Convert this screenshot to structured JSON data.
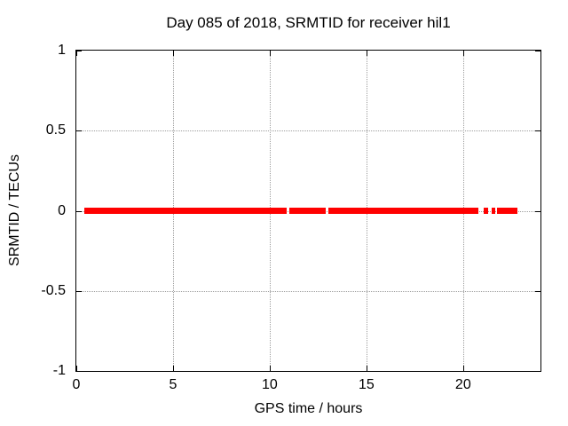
{
  "chart_data": {
    "type": "scatter",
    "title": "Day 085 of 2018, SRMTID for receiver hil1",
    "xlabel": "GPS time / hours",
    "ylabel": "SRMTID / TECUs",
    "xlim": [
      0,
      24
    ],
    "ylim": [
      -1,
      1
    ],
    "x_ticks": [
      0,
      5,
      10,
      15,
      20
    ],
    "x_tick_labels": [
      "0",
      "5",
      "10",
      "15",
      "20"
    ],
    "y_ticks": [
      1,
      0.5,
      0,
      -0.5,
      -1
    ],
    "y_tick_labels": [
      "1",
      "0.5",
      "0",
      "-0.5",
      "-1"
    ],
    "grid_x": [
      5,
      10,
      15,
      20
    ],
    "grid_y": [
      0.5,
      0,
      -0.5
    ],
    "grid_on": true,
    "legend": "none",
    "series": [
      {
        "name": "SRMTID",
        "color": "#ff0000",
        "marker": "filled-square",
        "marker_thickness_px": 7,
        "y_value": 0,
        "x_segments": [
          [
            0.4,
            10.88
          ],
          [
            11.0,
            12.88
          ],
          [
            13.04,
            20.77
          ],
          [
            21.08,
            21.28
          ],
          [
            21.46,
            21.64
          ],
          [
            21.74,
            22.79
          ]
        ]
      }
    ],
    "colors": {
      "background": "#ffffff",
      "axis": "#000000",
      "grid": "#9e9e9e",
      "text": "#000000"
    }
  }
}
